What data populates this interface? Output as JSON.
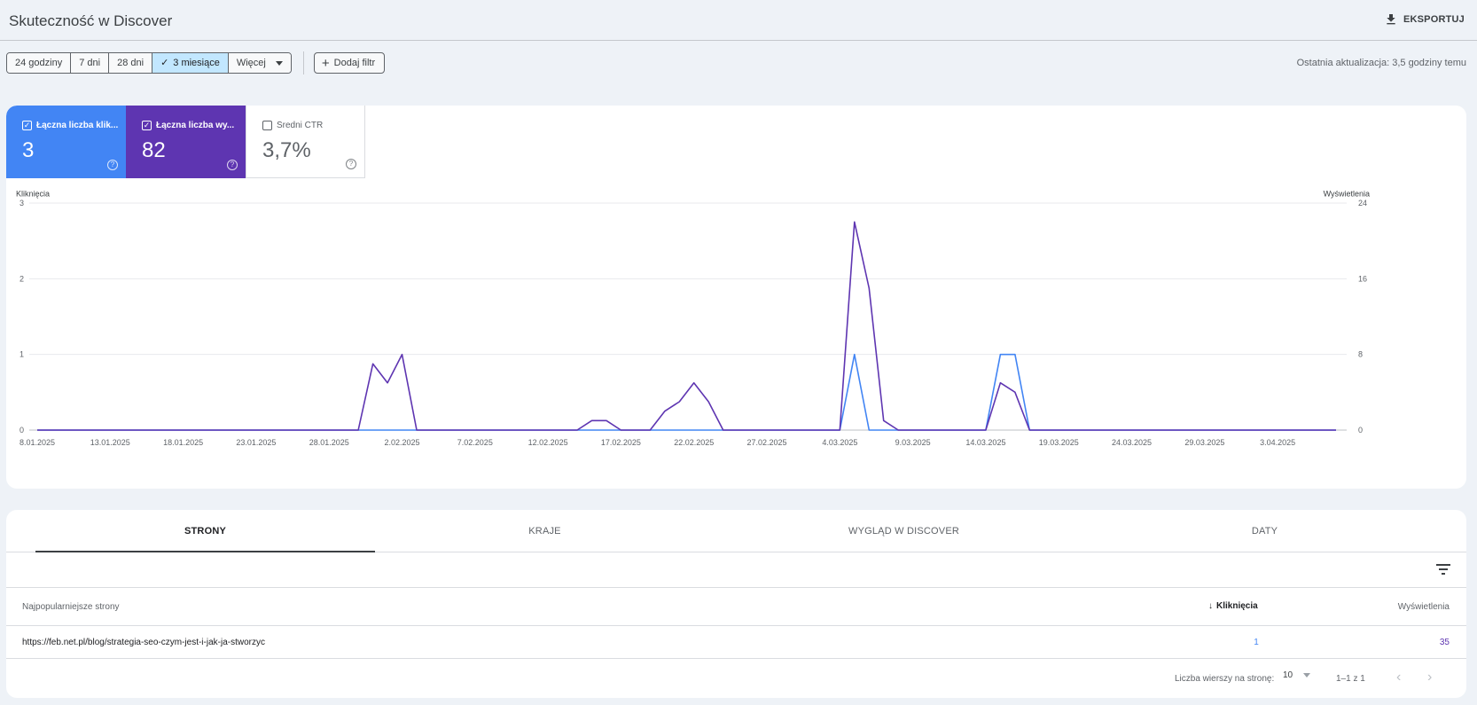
{
  "header": {
    "title": "Skuteczność w Discover",
    "export_label": "EKSPORTUJ"
  },
  "toolbar": {
    "ranges": [
      {
        "label": "24 godziny",
        "active": false
      },
      {
        "label": "7 dni",
        "active": false
      },
      {
        "label": "28 dni",
        "active": false
      },
      {
        "label": "3 miesiące",
        "active": true
      },
      {
        "label": "Więcej",
        "active": false
      }
    ],
    "add_filter_label": "Dodaj filtr",
    "last_update": "Ostatnia aktualizacja: 3,5 godziny temu"
  },
  "metrics": [
    {
      "label": "Łączna liczba klik...",
      "value": "3",
      "checked": true,
      "color": "#4285f4"
    },
    {
      "label": "Łączna liczba wy...",
      "value": "82",
      "checked": true,
      "color": "#5e35b1"
    },
    {
      "label": "Średni CTR",
      "value": "3,7%",
      "checked": false,
      "color": "#5f6368"
    }
  ],
  "chart_data": {
    "type": "line",
    "left_axis_label": "Kliknięcia",
    "right_axis_label": "Wyświetlenia",
    "left_ticks": [
      "0",
      "1",
      "2",
      "3"
    ],
    "right_ticks": [
      "0",
      "8",
      "16",
      "24"
    ],
    "ylim_left": [
      0,
      3
    ],
    "ylim_right": [
      0,
      24
    ],
    "x_tick_labels": [
      "8.01.2025",
      "13.01.2025",
      "18.01.2025",
      "23.01.2025",
      "28.01.2025",
      "2.02.2025",
      "7.02.2025",
      "12.02.2025",
      "17.02.2025",
      "22.02.2025",
      "27.02.2025",
      "4.03.2025",
      "9.03.2025",
      "14.03.2025",
      "19.03.2025",
      "24.03.2025",
      "29.03.2025",
      "3.04.2025"
    ],
    "x_start": "2025-01-08",
    "days": 90,
    "grid": true,
    "series": [
      {
        "name": "Kliknięcia",
        "axis": "left",
        "color": "#4285f4",
        "points": [
          [
            0,
            0
          ],
          [
            55,
            0
          ],
          [
            56,
            1
          ],
          [
            57,
            0
          ],
          [
            65,
            0
          ],
          [
            66,
            1
          ],
          [
            67,
            1
          ],
          [
            68,
            0
          ],
          [
            89,
            0
          ]
        ]
      },
      {
        "name": "Wyświetlenia",
        "axis": "right",
        "color": "#5e35b1",
        "points": [
          [
            0,
            0
          ],
          [
            22,
            0
          ],
          [
            23,
            7
          ],
          [
            24,
            5
          ],
          [
            25,
            8
          ],
          [
            26,
            0
          ],
          [
            37,
            0
          ],
          [
            38,
            1
          ],
          [
            39,
            1
          ],
          [
            40,
            0
          ],
          [
            42,
            0
          ],
          [
            43,
            2
          ],
          [
            44,
            3
          ],
          [
            45,
            5
          ],
          [
            46,
            3
          ],
          [
            47,
            0
          ],
          [
            55,
            0
          ],
          [
            56,
            22
          ],
          [
            57,
            15
          ],
          [
            58,
            1
          ],
          [
            59,
            0
          ],
          [
            65,
            0
          ],
          [
            66,
            5
          ],
          [
            67,
            4
          ],
          [
            68,
            0
          ],
          [
            89,
            0
          ]
        ]
      }
    ]
  },
  "tabs": [
    {
      "label": "STRONY",
      "active": true
    },
    {
      "label": "KRAJE",
      "active": false
    },
    {
      "label": "WYGLĄD W DISCOVER",
      "active": false
    },
    {
      "label": "DATY",
      "active": false
    }
  ],
  "table": {
    "col_pages": "Najpopularniejsze strony",
    "col_clicks": "Kliknięcia",
    "col_impressions": "Wyświetlenia",
    "rows": [
      {
        "url": "https://feb.net.pl/blog/strategia-seo-czym-jest-i-jak-ja-stworzyc",
        "clicks": "1",
        "impressions": "35"
      }
    ]
  },
  "pager": {
    "rows_label": "Liczba wierszy na stronę:",
    "rows_value": "10",
    "range": "1–1 z 1"
  }
}
